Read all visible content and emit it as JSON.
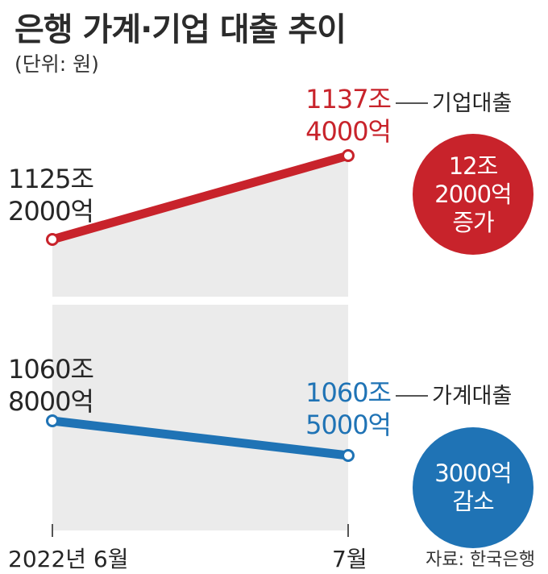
{
  "title": "은행 가계·기업 대출 추이",
  "unit": "(단위: 원)",
  "source": "자료: 한국은행",
  "colors": {
    "corporate": "#c8232b",
    "household": "#1f73b5",
    "panel": "#ebebeb"
  },
  "chart_data": [
    {
      "type": "line",
      "x": [
        "2022년 6월",
        "7월"
      ],
      "series": [
        {
          "name": "기업대출",
          "values": [
            11252000,
            11374000
          ],
          "value_unit": "억원",
          "start_label": [
            "1125조",
            "2000억"
          ],
          "end_label": [
            "1137조",
            "4000억"
          ],
          "change_label": [
            "12조",
            "2000억",
            "증가"
          ]
        }
      ]
    },
    {
      "type": "line",
      "x": [
        "2022년 6월",
        "7월"
      ],
      "series": [
        {
          "name": "가계대출",
          "values": [
            10608000,
            10605000
          ],
          "value_unit": "억원",
          "start_label": [
            "1060조",
            "8000억"
          ],
          "end_label": [
            "1060조",
            "5000억"
          ],
          "change_label": [
            "3000억",
            "감소"
          ]
        }
      ]
    }
  ]
}
